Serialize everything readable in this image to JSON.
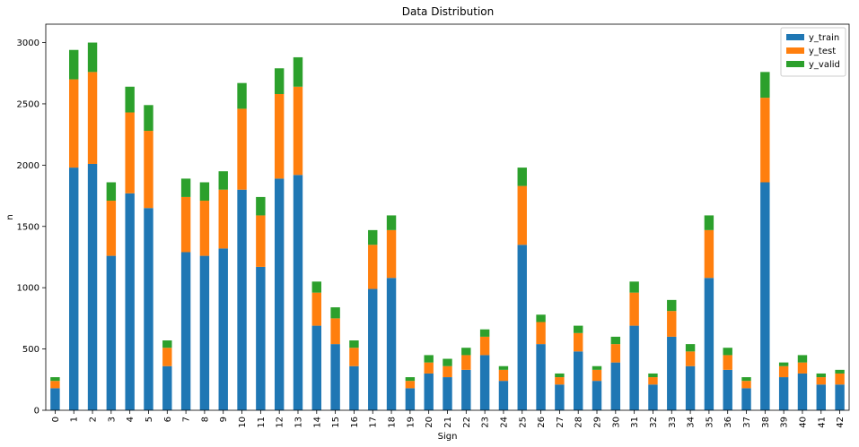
{
  "chart_data": {
    "type": "bar",
    "stacked": true,
    "title": "Data Distribution",
    "xlabel": "Sign",
    "ylabel": "n",
    "ylim": [
      0,
      3150
    ],
    "yticks": [
      0,
      500,
      1000,
      1500,
      2000,
      2500,
      3000
    ],
    "grid": false,
    "legend_position": "top-right",
    "categories": [
      "0",
      "1",
      "2",
      "3",
      "4",
      "5",
      "6",
      "7",
      "8",
      "9",
      "10",
      "11",
      "12",
      "13",
      "14",
      "15",
      "16",
      "17",
      "18",
      "19",
      "20",
      "21",
      "22",
      "23",
      "24",
      "25",
      "26",
      "27",
      "28",
      "29",
      "30",
      "31",
      "32",
      "33",
      "34",
      "35",
      "36",
      "37",
      "38",
      "39",
      "40",
      "41",
      "42"
    ],
    "series": [
      {
        "name": "y_train",
        "color": "#1f77b4",
        "values": [
          180,
          1980,
          2010,
          1260,
          1770,
          1650,
          360,
          1290,
          1260,
          1320,
          1800,
          1170,
          1890,
          1920,
          690,
          540,
          360,
          990,
          1080,
          180,
          300,
          270,
          330,
          450,
          240,
          1350,
          540,
          210,
          480,
          240,
          390,
          690,
          210,
          600,
          360,
          1080,
          330,
          180,
          1860,
          270,
          300,
          210,
          210
        ]
      },
      {
        "name": "y_test",
        "color": "#ff7f0e",
        "values": [
          60,
          720,
          750,
          450,
          660,
          630,
          150,
          450,
          450,
          480,
          660,
          420,
          690,
          720,
          270,
          210,
          150,
          360,
          390,
          60,
          90,
          90,
          120,
          150,
          90,
          480,
          180,
          60,
          150,
          90,
          150,
          270,
          60,
          210,
          120,
          390,
          120,
          60,
          690,
          90,
          90,
          60,
          90
        ]
      },
      {
        "name": "y_valid",
        "color": "#2ca02c",
        "values": [
          30,
          240,
          240,
          150,
          210,
          210,
          60,
          150,
          150,
          150,
          210,
          150,
          210,
          240,
          90,
          90,
          60,
          120,
          120,
          30,
          60,
          60,
          60,
          60,
          30,
          150,
          60,
          30,
          60,
          30,
          60,
          90,
          30,
          90,
          60,
          120,
          60,
          30,
          210,
          30,
          60,
          30,
          30
        ]
      }
    ]
  }
}
